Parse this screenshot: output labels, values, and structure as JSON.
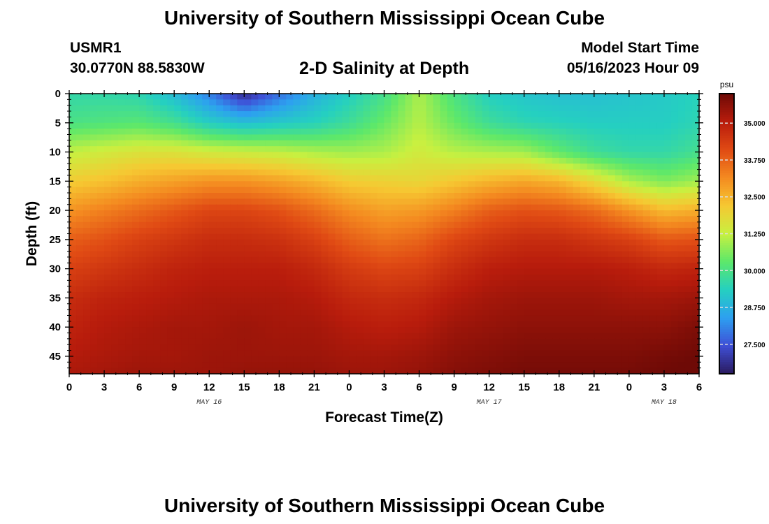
{
  "header": {
    "title": "University of Southern Mississippi Ocean Cube",
    "station": "USMR1",
    "coords": "30.0770N  88.5830W",
    "subtitle": "2-D Salinity at Depth",
    "start_label": "Model Start Time",
    "start_value": "05/16/2023 Hour 09"
  },
  "footer": {
    "title": "University of Southern Mississippi Ocean Cube"
  },
  "chart_data": {
    "type": "heatmap",
    "title": "2-D Salinity at Depth",
    "xlabel": "Forecast Time(Z)",
    "ylabel": "Depth (ft)",
    "x_ticks": [
      "0",
      "3",
      "6",
      "9",
      "12",
      "15",
      "18",
      "21",
      "0",
      "3",
      "6",
      "9",
      "12",
      "15",
      "18",
      "21",
      "0",
      "3",
      "6"
    ],
    "x_range_hours": [
      0,
      54
    ],
    "date_labels": [
      {
        "label": "MAY 16",
        "at_hour": 12
      },
      {
        "label": "MAY 17",
        "at_hour": 36
      },
      {
        "label": "MAY 18",
        "at_hour": 51
      }
    ],
    "y_ticks": [
      0,
      5,
      10,
      15,
      20,
      25,
      30,
      35,
      40,
      45
    ],
    "ylim": [
      0,
      48
    ],
    "y_inverted": true,
    "colorbar": {
      "unit": "psu",
      "min": 26.5,
      "max": 36.0,
      "labels": [
        "35.000",
        "33.750",
        "32.500",
        "31.250",
        "30.000",
        "28.750",
        "27.500"
      ],
      "label_values": [
        35.0,
        33.75,
        32.5,
        31.25,
        30.0,
        28.75,
        27.5
      ]
    },
    "grid_hours": [
      0,
      3,
      6,
      9,
      12,
      15,
      18,
      21,
      24,
      27,
      30,
      33,
      36,
      39,
      42,
      45,
      48,
      51,
      54
    ],
    "grid_depths": [
      0,
      5,
      10,
      15,
      20,
      25,
      30,
      35,
      40,
      45,
      48
    ],
    "salinity_psu": [
      [
        29.6,
        29.6,
        29.5,
        28.9,
        28.0,
        26.8,
        27.8,
        28.7,
        29.3,
        29.9,
        31.0,
        30.0,
        29.3,
        29.1,
        29.0,
        29.0,
        29.1,
        29.2,
        29.4
      ],
      [
        30.0,
        30.1,
        30.2,
        29.9,
        29.3,
        29.0,
        29.2,
        29.4,
        29.8,
        30.4,
        31.1,
        30.4,
        29.8,
        29.5,
        29.4,
        29.3,
        29.3,
        29.3,
        29.5
      ],
      [
        31.2,
        31.4,
        31.6,
        31.6,
        31.4,
        31.3,
        31.2,
        31.0,
        30.9,
        31.0,
        31.4,
        31.1,
        31.0,
        30.9,
        30.3,
        29.8,
        29.6,
        29.6,
        29.9
      ],
      [
        32.1,
        32.3,
        32.6,
        32.8,
        33.0,
        33.0,
        32.8,
        32.5,
        32.1,
        32.0,
        31.9,
        32.2,
        32.5,
        32.7,
        32.5,
        31.8,
        31.0,
        30.6,
        30.9
      ],
      [
        33.0,
        33.3,
        33.6,
        33.9,
        34.2,
        34.2,
        34.0,
        33.6,
        33.1,
        32.8,
        32.9,
        33.3,
        33.8,
        34.0,
        33.9,
        33.6,
        33.0,
        32.4,
        32.6
      ],
      [
        33.8,
        34.0,
        34.3,
        34.5,
        34.7,
        34.7,
        34.6,
        34.3,
        33.8,
        33.5,
        33.7,
        34.2,
        34.5,
        34.7,
        34.7,
        34.5,
        34.3,
        33.9,
        34.0
      ],
      [
        34.3,
        34.5,
        34.7,
        34.9,
        35.0,
        35.0,
        35.0,
        34.8,
        34.4,
        34.2,
        34.3,
        34.7,
        35.0,
        35.1,
        35.1,
        35.1,
        35.0,
        34.8,
        34.9
      ],
      [
        34.7,
        34.9,
        35.0,
        35.1,
        35.2,
        35.2,
        35.2,
        35.1,
        34.8,
        34.7,
        34.8,
        35.1,
        35.3,
        35.4,
        35.4,
        35.4,
        35.3,
        35.3,
        35.4
      ],
      [
        34.9,
        35.1,
        35.2,
        35.3,
        35.3,
        35.4,
        35.3,
        35.3,
        35.1,
        35.0,
        35.1,
        35.4,
        35.5,
        35.6,
        35.6,
        35.6,
        35.6,
        35.6,
        35.8
      ],
      [
        35.1,
        35.2,
        35.3,
        35.3,
        35.4,
        35.4,
        35.4,
        35.4,
        35.3,
        35.3,
        35.4,
        35.6,
        35.7,
        35.8,
        35.8,
        35.8,
        35.8,
        35.9,
        36.0
      ],
      [
        35.2,
        35.3,
        35.4,
        35.4,
        35.4,
        35.5,
        35.5,
        35.5,
        35.4,
        35.4,
        35.5,
        35.7,
        35.8,
        35.9,
        35.9,
        35.9,
        35.9,
        36.0,
        36.1
      ]
    ]
  },
  "colors": {
    "scale": [
      "#2a1a5e",
      "#3f4fd6",
      "#2da0f0",
      "#25d0c0",
      "#5de86a",
      "#c8f040",
      "#f6c832",
      "#f48a20",
      "#e04a14",
      "#b81c0c",
      "#6e0a06"
    ]
  }
}
